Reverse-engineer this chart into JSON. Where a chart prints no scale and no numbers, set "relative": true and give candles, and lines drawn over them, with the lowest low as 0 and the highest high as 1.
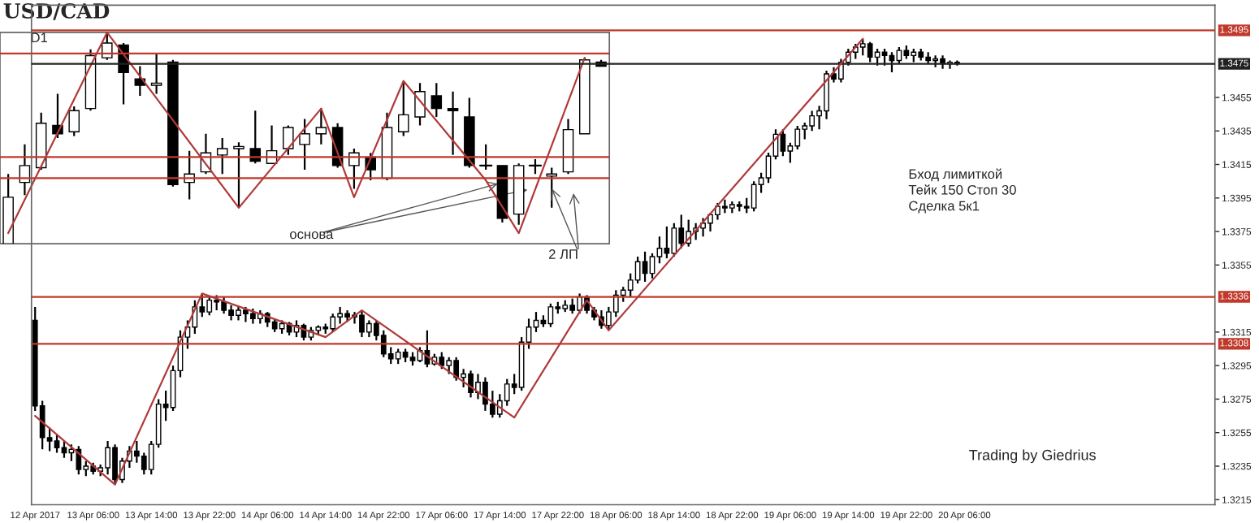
{
  "chart_data": [
    {
      "type": "candlestick",
      "title": "USD/CAD",
      "subtitle": "D1",
      "relative": true,
      "categories": [
        null,
        null,
        null,
        null,
        null,
        null,
        null,
        null,
        null,
        null,
        null,
        null,
        null,
        null,
        null,
        null,
        null,
        null,
        null,
        null,
        null,
        null,
        null,
        null,
        null,
        null,
        null,
        null,
        null,
        null,
        null,
        null,
        null,
        null,
        null,
        null,
        null
      ],
      "ohlc": [
        [
          0,
          0.33,
          0,
          0.22
        ],
        [
          0.29,
          0.47,
          0.23,
          0.37
        ],
        [
          0.36,
          0.62,
          0.35,
          0.57
        ],
        [
          0.56,
          0.71,
          0.5,
          0.52
        ],
        [
          0.53,
          0.65,
          0.51,
          0.63
        ],
        [
          0.64,
          0.92,
          0.63,
          0.89
        ],
        [
          0.88,
          1,
          0.87,
          0.95
        ],
        [
          0.94,
          0.95,
          0.66,
          0.81
        ],
        [
          0.78,
          0.84,
          0.7,
          0.75
        ],
        [
          0.75,
          0.9,
          0.71,
          0.76
        ],
        [
          0.86,
          0.87,
          0.27,
          0.28
        ],
        [
          0.29,
          0.44,
          0.21,
          0.33
        ],
        [
          0.34,
          0.52,
          0.33,
          0.43
        ],
        [
          0.42,
          0.5,
          0.33,
          0.45
        ],
        [
          0.45,
          0.48,
          0.17,
          0.46
        ],
        [
          0.45,
          0.63,
          0.38,
          0.39
        ],
        [
          0.38,
          0.56,
          0.38,
          0.44
        ],
        [
          0.45,
          0.56,
          0.42,
          0.55
        ],
        [
          0.47,
          0.59,
          0.35,
          0.52
        ],
        [
          0.52,
          0.64,
          0.47,
          0.55
        ],
        [
          0.55,
          0.57,
          0.36,
          0.37
        ],
        [
          0.37,
          0.45,
          0.26,
          0.43
        ],
        [
          0.41,
          0.43,
          0.3,
          0.35
        ],
        [
          0.31,
          0.62,
          0.3,
          0.55
        ],
        [
          0.53,
          0.77,
          0.51,
          0.61
        ],
        [
          0.6,
          0.76,
          0.56,
          0.72
        ],
        [
          0.7,
          0.76,
          0.6,
          0.64
        ],
        [
          0.64,
          0.72,
          0.42,
          0.63
        ],
        [
          0.6,
          0.69,
          0.36,
          0.37
        ],
        [
          0.37,
          0.47,
          0.35,
          0.37
        ],
        [
          0.37,
          0.37,
          0.1,
          0.12
        ],
        [
          0.14,
          0.38,
          0.09,
          0.37
        ],
        [
          0.37,
          0.4,
          0.33,
          0.37
        ],
        [
          0.32,
          0.36,
          0.17,
          0.33
        ],
        [
          0.34,
          0.59,
          0.33,
          0.54
        ],
        [
          0.52,
          0.88,
          0.52,
          0.87
        ],
        [
          0.86,
          0.87,
          0.84,
          0.84
        ]
      ],
      "series": [
        {
          "type": "line",
          "color": "#b03a3a",
          "values": [
            0.05,
            null,
            null,
            null,
            null,
            null,
            1.0,
            null,
            null,
            null,
            null,
            null,
            null,
            null,
            0.17,
            null,
            null,
            null,
            null,
            0.64,
            null,
            0.22,
            null,
            null,
            0.77,
            null,
            null,
            null,
            null,
            0.3,
            null,
            0.05,
            null,
            null,
            null,
            0.88,
            null
          ]
        }
      ],
      "ref_lines": [
        {
          "axis": "y",
          "value": 0.9,
          "color": "#c0392b"
        },
        {
          "axis": "y",
          "value": 0.41,
          "color": "#c0392b"
        },
        {
          "axis": "y",
          "value": 0.31,
          "color": "#c0392b"
        }
      ],
      "annotations": [
        "основа",
        "2 ЛП"
      ]
    },
    {
      "type": "candlestick",
      "categories": [
        "12 Apr 2017",
        null,
        null,
        null,
        null,
        null,
        null,
        null,
        "13 Apr 06:00",
        null,
        null,
        null,
        null,
        null,
        null,
        null,
        "13 Apr 14:00",
        null,
        null,
        null,
        null,
        null,
        null,
        null,
        "13 Apr 22:00",
        null,
        null,
        null,
        null,
        null,
        null,
        null,
        "14 Apr 06:00",
        null,
        null,
        null,
        null,
        null,
        null,
        null,
        "14 Apr 14:00",
        null,
        null,
        null,
        null,
        null,
        null,
        null,
        "14 Apr 22:00",
        null,
        null,
        null,
        null,
        null,
        null,
        null,
        "17 Apr 06:00",
        null,
        null,
        null,
        null,
        null,
        null,
        null,
        "17 Apr 14:00",
        null,
        null,
        null,
        null,
        null,
        null,
        null,
        "17 Apr 22:00",
        null,
        null,
        null,
        null,
        null,
        null,
        null,
        "18 Apr 06:00",
        null,
        null,
        null,
        null,
        null,
        null,
        null,
        "18 Apr 14:00",
        null,
        null,
        null,
        null,
        null,
        null,
        null,
        "18 Apr 22:00",
        null,
        null,
        null,
        null,
        null,
        null,
        null,
        "19 Apr 06:00",
        null,
        null,
        null,
        null,
        null,
        null,
        null,
        "19 Apr 14:00",
        null,
        null,
        null,
        null,
        null,
        null,
        null,
        "19 Apr 22:00",
        null,
        null,
        null,
        null,
        null,
        null,
        null,
        "20 Apr 06:00",
        null,
        null,
        null,
        null,
        null,
        null,
        null,
        null,
        null,
        null,
        null,
        null,
        null,
        null,
        null,
        null,
        null,
        null,
        null,
        null,
        null,
        null,
        null,
        null,
        null,
        null,
        null,
        null,
        null,
        null,
        null,
        null,
        null,
        null
      ],
      "ohlc": [
        [
          1.3322,
          1.333,
          1.3268,
          1.3271
        ],
        [
          1.3271,
          1.3274,
          1.3245,
          1.3252
        ],
        [
          1.3252,
          1.3258,
          1.3244,
          1.325
        ],
        [
          1.325,
          1.3254,
          1.3243,
          1.3246
        ],
        [
          1.3246,
          1.325,
          1.324,
          1.3243
        ],
        [
          1.3243,
          1.3248,
          1.3238,
          1.3245
        ],
        [
          1.3245,
          1.3247,
          1.323,
          1.3233
        ],
        [
          1.3233,
          1.3238,
          1.3229,
          1.3235
        ],
        [
          1.3235,
          1.3237,
          1.323,
          1.3232
        ],
        [
          1.3232,
          1.3236,
          1.3229,
          1.3234
        ],
        [
          1.3234,
          1.325,
          1.323,
          1.3246
        ],
        [
          1.3246,
          1.3248,
          1.3224,
          1.3227
        ],
        [
          1.3227,
          1.324,
          1.3225,
          1.3238
        ],
        [
          1.3238,
          1.3247,
          1.3234,
          1.3244
        ],
        [
          1.3244,
          1.325,
          1.3237,
          1.3241
        ],
        [
          1.3241,
          1.3243,
          1.323,
          1.3233
        ],
        [
          1.3233,
          1.325,
          1.323,
          1.3248
        ],
        [
          1.3248,
          1.3275,
          1.3246,
          1.3272
        ],
        [
          1.3272,
          1.328,
          1.3262,
          1.327
        ],
        [
          1.327,
          1.3295,
          1.3268,
          1.3292
        ],
        [
          1.3292,
          1.3316,
          1.3288,
          1.3312
        ],
        [
          1.3312,
          1.3322,
          1.3305,
          1.3318
        ],
        [
          1.3318,
          1.3334,
          1.3314,
          1.333
        ],
        [
          1.333,
          1.3338,
          1.3324,
          1.3327
        ],
        [
          1.3327,
          1.3336,
          1.3325,
          1.3334
        ],
        [
          1.3334,
          1.3337,
          1.3328,
          1.3333
        ],
        [
          1.3333,
          1.3336,
          1.3326,
          1.3328
        ],
        [
          1.3328,
          1.3331,
          1.3322,
          1.3325
        ],
        [
          1.3325,
          1.333,
          1.3322,
          1.3328
        ],
        [
          1.3328,
          1.333,
          1.3321,
          1.3326
        ],
        [
          1.3326,
          1.3329,
          1.332,
          1.3323
        ],
        [
          1.3323,
          1.3328,
          1.332,
          1.3326
        ],
        [
          1.3326,
          1.3327,
          1.3318,
          1.3321
        ],
        [
          1.3321,
          1.3323,
          1.3315,
          1.3317
        ],
        [
          1.3317,
          1.3322,
          1.3314,
          1.332
        ],
        [
          1.332,
          1.3321,
          1.3313,
          1.3315
        ],
        [
          1.3315,
          1.3322,
          1.3312,
          1.3319
        ],
        [
          1.3319,
          1.332,
          1.331,
          1.3312
        ],
        [
          1.3312,
          1.3318,
          1.331,
          1.3316
        ],
        [
          1.3316,
          1.3319,
          1.3313,
          1.3318
        ],
        [
          1.3318,
          1.332,
          1.3314,
          1.3317
        ],
        [
          1.3317,
          1.3326,
          1.3315,
          1.3324
        ],
        [
          1.3324,
          1.333,
          1.332,
          1.3326
        ],
        [
          1.3326,
          1.3328,
          1.3321,
          1.3324
        ],
        [
          1.3324,
          1.3327,
          1.332,
          1.3325
        ],
        [
          1.3325,
          1.3328,
          1.3312,
          1.3315
        ],
        [
          1.3315,
          1.3322,
          1.3312,
          1.332
        ],
        [
          1.332,
          1.3322,
          1.331,
          1.3313
        ],
        [
          1.3313,
          1.3316,
          1.33,
          1.3302
        ],
        [
          1.3302,
          1.3306,
          1.3296,
          1.3299
        ],
        [
          1.3299,
          1.3305,
          1.3296,
          1.3303
        ],
        [
          1.3303,
          1.3305,
          1.3297,
          1.33
        ],
        [
          1.33,
          1.3303,
          1.3295,
          1.3298
        ],
        [
          1.3298,
          1.3306,
          1.3297,
          1.3304
        ],
        [
          1.3304,
          1.3316,
          1.3294,
          1.3296
        ],
        [
          1.3296,
          1.3302,
          1.3295,
          1.33
        ],
        [
          1.33,
          1.3303,
          1.3293,
          1.3295
        ],
        [
          1.3295,
          1.33,
          1.329,
          1.3298
        ],
        [
          1.3298,
          1.33,
          1.3286,
          1.3288
        ],
        [
          1.3288,
          1.3293,
          1.3282,
          1.329
        ],
        [
          1.329,
          1.3292,
          1.3276,
          1.3279
        ],
        [
          1.3279,
          1.329,
          1.3275,
          1.3285
        ],
        [
          1.3285,
          1.3288,
          1.3268,
          1.3272
        ],
        [
          1.3272,
          1.328,
          1.3264,
          1.3266
        ],
        [
          1.3266,
          1.3278,
          1.3264,
          1.3274
        ],
        [
          1.3274,
          1.3287,
          1.3271,
          1.3284
        ],
        [
          1.3284,
          1.329,
          1.3278,
          1.3282
        ],
        [
          1.3282,
          1.3312,
          1.328,
          1.3309
        ],
        [
          1.3309,
          1.3323,
          1.3305,
          1.3318
        ],
        [
          1.3318,
          1.3327,
          1.3315,
          1.3322
        ],
        [
          1.3322,
          1.3325,
          1.3318,
          1.332
        ],
        [
          1.332,
          1.3332,
          1.3318,
          1.333
        ],
        [
          1.333,
          1.3333,
          1.3326,
          1.3329
        ],
        [
          1.3329,
          1.3334,
          1.3327,
          1.3331
        ],
        [
          1.3331,
          1.3335,
          1.3326,
          1.3328
        ],
        [
          1.3328,
          1.3338,
          1.3326,
          1.3336
        ],
        [
          1.3336,
          1.3337,
          1.3326,
          1.3328
        ],
        [
          1.3328,
          1.333,
          1.3322,
          1.3324
        ],
        [
          1.3324,
          1.3328,
          1.3317,
          1.3319
        ],
        [
          1.3319,
          1.333,
          1.3316,
          1.3327
        ],
        [
          1.3327,
          1.334,
          1.3324,
          1.3337
        ],
        [
          1.3337,
          1.3342,
          1.3333,
          1.334
        ],
        [
          1.334,
          1.335,
          1.3336,
          1.3346
        ],
        [
          1.3346,
          1.336,
          1.3344,
          1.3357
        ],
        [
          1.3357,
          1.3363,
          1.3345,
          1.335
        ],
        [
          1.335,
          1.3362,
          1.3347,
          1.336
        ],
        [
          1.336,
          1.3372,
          1.3356,
          1.3365
        ],
        [
          1.3365,
          1.3378,
          1.3359,
          1.3362
        ],
        [
          1.3362,
          1.338,
          1.336,
          1.3377
        ],
        [
          1.3377,
          1.3385,
          1.3365,
          1.3368
        ],
        [
          1.3368,
          1.3382,
          1.3366,
          1.3375
        ],
        [
          1.3375,
          1.338,
          1.337,
          1.3377
        ],
        [
          1.3377,
          1.3383,
          1.3372,
          1.338
        ],
        [
          1.338,
          1.3386,
          1.3375,
          1.3385
        ],
        [
          1.3385,
          1.3392,
          1.3382,
          1.339
        ],
        [
          1.339,
          1.3394,
          1.3386,
          1.3389
        ],
        [
          1.3389,
          1.3393,
          1.3386,
          1.3391
        ],
        [
          1.3391,
          1.3393,
          1.3387,
          1.339
        ],
        [
          1.339,
          1.3395,
          1.3386,
          1.3389
        ],
        [
          1.3389,
          1.3405,
          1.3387,
          1.3403
        ],
        [
          1.3403,
          1.341,
          1.3398,
          1.3407
        ],
        [
          1.3407,
          1.3422,
          1.3404,
          1.342
        ],
        [
          1.342,
          1.3436,
          1.3418,
          1.3433
        ],
        [
          1.3433,
          1.3436,
          1.342,
          1.3423
        ],
        [
          1.3423,
          1.3428,
          1.3416,
          1.3426
        ],
        [
          1.3426,
          1.3438,
          1.3424,
          1.3436
        ],
        [
          1.3436,
          1.344,
          1.343,
          1.3438
        ],
        [
          1.3438,
          1.3447,
          1.3435,
          1.3444
        ],
        [
          1.3444,
          1.345,
          1.3436,
          1.3447
        ],
        [
          1.3447,
          1.3471,
          1.3442,
          1.3469
        ],
        [
          1.3469,
          1.3473,
          1.3464,
          1.3466
        ],
        [
          1.3466,
          1.3478,
          1.3464,
          1.3476
        ],
        [
          1.3476,
          1.3484,
          1.3474,
          1.3482
        ],
        [
          1.3482,
          1.3487,
          1.3478,
          1.3485
        ],
        [
          1.3485,
          1.349,
          1.348,
          1.3487
        ],
        [
          1.3487,
          1.3488,
          1.3476,
          1.3479
        ],
        [
          1.3479,
          1.3484,
          1.3474,
          1.3482
        ],
        [
          1.3482,
          1.3484,
          1.3474,
          1.348
        ],
        [
          1.348,
          1.3482,
          1.347,
          1.3477
        ],
        [
          1.3477,
          1.3485,
          1.3475,
          1.3483
        ],
        [
          1.3483,
          1.3486,
          1.3478,
          1.348
        ],
        [
          1.348,
          1.3484,
          1.3476,
          1.3482
        ],
        [
          1.3482,
          1.3484,
          1.3477,
          1.3479
        ],
        [
          1.3479,
          1.3482,
          1.3475,
          1.3477
        ],
        [
          1.3477,
          1.348,
          1.3473,
          1.3478
        ],
        [
          1.3478,
          1.348,
          1.3472,
          1.3475
        ],
        [
          1.3475,
          1.3477,
          1.3472,
          1.3476
        ],
        [
          1.3476,
          1.3477,
          1.3474,
          1.3475
        ],
        null,
        null,
        null,
        null,
        null,
        null,
        null,
        null,
        null,
        null,
        null,
        null,
        null,
        null,
        null,
        null,
        null,
        null,
        null,
        null,
        null,
        null,
        null,
        null,
        null,
        null,
        null,
        null,
        null,
        null,
        null,
        null,
        null,
        null,
        null
      ],
      "series": [
        {
          "type": "line",
          "color": "#b03a3a",
          "values": [
            1.3265,
            null,
            null,
            null,
            null,
            null,
            null,
            null,
            null,
            null,
            null,
            1.3224,
            null,
            null,
            null,
            null,
            null,
            null,
            null,
            null,
            null,
            null,
            null,
            1.3338,
            null,
            null,
            null,
            null,
            null,
            null,
            null,
            null,
            null,
            null,
            null,
            null,
            null,
            null,
            null,
            null,
            1.3312,
            null,
            null,
            null,
            null,
            1.3328,
            null,
            null,
            null,
            null,
            null,
            null,
            null,
            null,
            null,
            null,
            null,
            null,
            null,
            null,
            null,
            null,
            null,
            null,
            null,
            null,
            1.3264,
            null,
            null,
            null,
            null,
            null,
            null,
            null,
            null,
            null,
            1.3334,
            null,
            null,
            1.3316,
            null,
            null,
            null,
            null,
            null,
            null,
            null,
            null,
            null,
            null,
            null,
            null,
            null,
            null,
            null,
            null,
            null,
            null,
            null,
            null,
            null,
            null,
            null,
            null,
            null,
            null,
            null,
            null,
            null,
            null,
            null,
            null,
            null,
            null,
            1.349,
            null,
            null,
            null,
            null,
            null,
            null,
            null,
            null,
            null,
            null,
            null,
            null,
            null,
            null,
            null,
            null,
            null,
            null,
            null,
            null,
            null,
            null,
            null,
            null,
            null,
            null,
            null,
            null,
            null,
            null,
            null,
            null,
            null,
            null,
            null,
            null,
            null,
            null,
            null,
            null,
            null,
            null,
            null,
            null,
            null,
            null,
            null,
            null
          ]
        }
      ],
      "ylim": [
        1.3212,
        1.351
      ],
      "yticks": [
        1.3215,
        1.3235,
        1.3255,
        1.3275,
        1.3295,
        1.3315,
        1.3355,
        1.3375,
        1.3395,
        1.3415,
        1.3435,
        1.3455
      ],
      "ref_lines": [
        {
          "axis": "y",
          "value": 1.3495,
          "label": "1.3495",
          "color": "#c0392b"
        },
        {
          "axis": "y",
          "value": 1.3475,
          "label": "1.3475",
          "color": "#222222"
        },
        {
          "axis": "y",
          "value": 1.3336,
          "label": "1.3336",
          "color": "#c0392b"
        },
        {
          "axis": "y",
          "value": 1.3308,
          "label": "1.3308",
          "color": "#c0392b"
        }
      ],
      "annotations": [
        "Бход лимиткой",
        "Тейк 150 Стоп 30",
        "Сделка 5к1",
        "Trading by Giedrius"
      ]
    }
  ]
}
